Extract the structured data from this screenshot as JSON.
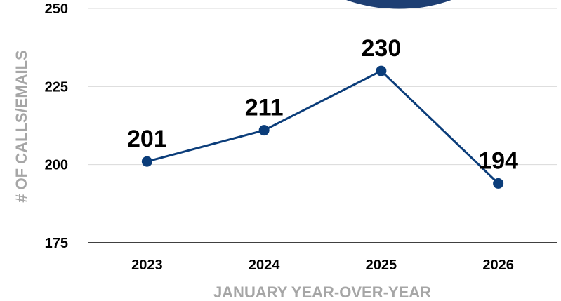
{
  "chart_data": {
    "type": "line",
    "title": "",
    "xlabel": "JANUARY YEAR-OVER-YEAR",
    "ylabel": "# OF CALLS/EMAILS",
    "categories": [
      "2023",
      "2024",
      "2025",
      "2026"
    ],
    "series": [
      {
        "values": [
          201,
          211,
          230,
          194
        ],
        "data_labels": [
          "201",
          "211",
          "230",
          "194"
        ]
      }
    ],
    "ylim": [
      175,
      250
    ],
    "yticks": [
      175,
      200,
      225,
      250
    ],
    "ytick_labels": [
      "175",
      "200",
      "225",
      "250"
    ],
    "grid": true,
    "legend": "none",
    "colors": {
      "line": "#0b3d7a",
      "marker": "#0b3d7a",
      "gridline": "#d9d9d9",
      "axis_line": "#000000",
      "axis_title": "#a6a6a6",
      "badge": "#1e3f73"
    }
  }
}
